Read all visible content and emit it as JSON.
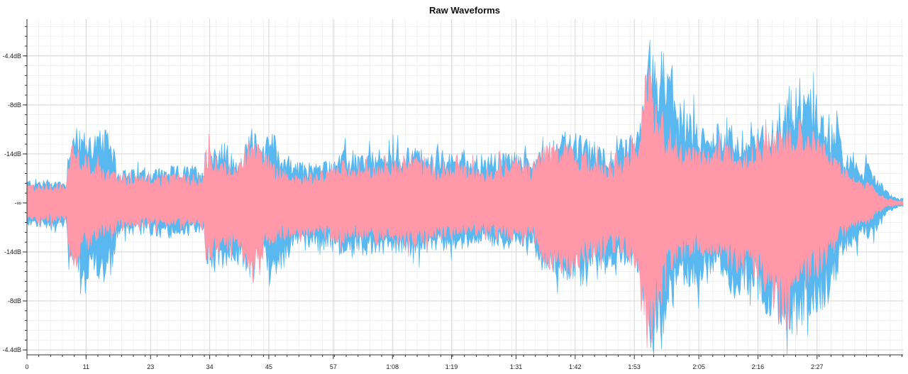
{
  "chart_data": {
    "type": "area",
    "title": "Raw Waveforms",
    "xlabel": "",
    "ylabel": "",
    "x_unit": "seconds",
    "xlim": [
      0,
      163
    ],
    "x_ticks": [
      {
        "value": 0,
        "label": "0"
      },
      {
        "value": 11,
        "label": "11"
      },
      {
        "value": 23,
        "label": "23"
      },
      {
        "value": 34,
        "label": "34"
      },
      {
        "value": 45,
        "label": "45"
      },
      {
        "value": 57,
        "label": "57"
      },
      {
        "value": 68,
        "label": "1:08"
      },
      {
        "value": 79,
        "label": "1:19"
      },
      {
        "value": 91,
        "label": "1:31"
      },
      {
        "value": 102,
        "label": "1:42"
      },
      {
        "value": 113,
        "label": "1:53"
      },
      {
        "value": 125,
        "label": "2:05"
      },
      {
        "value": 136,
        "label": "2:16"
      },
      {
        "value": 147,
        "label": "2:27"
      }
    ],
    "y_ticks": [
      {
        "value": 0.6,
        "label": "-4.4dB"
      },
      {
        "value": 0.4,
        "label": "-8dB"
      },
      {
        "value": 0.2,
        "label": "-14dB"
      },
      {
        "value": 0,
        "label": "-∞"
      },
      {
        "value": -0.2,
        "label": "-14dB"
      },
      {
        "value": -0.4,
        "label": "-8dB"
      },
      {
        "value": -0.6,
        "label": "-4.4dB"
      }
    ],
    "ylim": [
      -0.62,
      0.75
    ],
    "grid": true,
    "series": [
      {
        "color": "#5ab8f0",
        "x": [
          0,
          7.5,
          7.6,
          9,
          10.5,
          12,
          13.5,
          15,
          16.5,
          16.6,
          20,
          25,
          33,
          33.2,
          35,
          37,
          39,
          42,
          44,
          45,
          47,
          50,
          52,
          56,
          59,
          60,
          66,
          72,
          76,
          78,
          80,
          85,
          90,
          94,
          96,
          100,
          103,
          105,
          110,
          114,
          115,
          116,
          117,
          118,
          119,
          120,
          121,
          122,
          123,
          125,
          127,
          130,
          132,
          135,
          138,
          140,
          142,
          145,
          148,
          150,
          151,
          152,
          153,
          154,
          155,
          157,
          158,
          160,
          162,
          163
        ],
        "top": [
          0.1,
          0.1,
          0.28,
          0.3,
          0.3,
          0.3,
          0.3,
          0.3,
          0.25,
          0.14,
          0.14,
          0.15,
          0.16,
          0.24,
          0.25,
          0.25,
          0.17,
          0.3,
          0.25,
          0.35,
          0.23,
          0.17,
          0.17,
          0.18,
          0.22,
          0.2,
          0.22,
          0.24,
          0.2,
          0.2,
          0.22,
          0.2,
          0.22,
          0.2,
          0.25,
          0.3,
          0.28,
          0.26,
          0.22,
          0.32,
          0.5,
          0.68,
          0.6,
          0.66,
          0.58,
          0.5,
          0.48,
          0.35,
          0.38,
          0.34,
          0.3,
          0.36,
          0.3,
          0.3,
          0.34,
          0.38,
          0.48,
          0.55,
          0.4,
          0.35,
          0.34,
          0.22,
          0.2,
          0.18,
          0.15,
          0.17,
          0.12,
          0.05,
          0.02,
          0.02
        ],
        "bot": [
          -0.1,
          -0.11,
          -0.22,
          -0.3,
          -0.32,
          -0.33,
          -0.32,
          -0.33,
          -0.25,
          -0.15,
          -0.13,
          -0.15,
          -0.13,
          -0.25,
          -0.3,
          -0.27,
          -0.26,
          -0.3,
          -0.2,
          -0.35,
          -0.3,
          -0.18,
          -0.2,
          -0.2,
          -0.22,
          -0.23,
          -0.22,
          -0.22,
          -0.2,
          -0.2,
          -0.2,
          -0.17,
          -0.2,
          -0.18,
          -0.27,
          -0.32,
          -0.35,
          -0.28,
          -0.26,
          -0.3,
          -0.5,
          -0.62,
          -0.6,
          -0.62,
          -0.48,
          -0.45,
          -0.4,
          -0.35,
          -0.35,
          -0.35,
          -0.3,
          -0.35,
          -0.4,
          -0.38,
          -0.48,
          -0.5,
          -0.55,
          -0.5,
          -0.45,
          -0.38,
          -0.3,
          -0.2,
          -0.2,
          -0.2,
          -0.15,
          -0.15,
          -0.12,
          -0.05,
          -0.02,
          -0.02
        ]
      },
      {
        "color": "#ff99aa",
        "x": [
          0,
          7.5,
          7.6,
          9,
          10.5,
          12,
          13.5,
          15,
          16.5,
          16.6,
          20,
          25,
          33,
          33.2,
          35,
          37,
          39,
          42,
          44,
          45,
          47,
          50,
          52,
          56,
          59,
          60,
          66,
          72,
          76,
          78,
          80,
          85,
          90,
          94,
          96,
          100,
          103,
          105,
          110,
          114,
          115,
          116,
          117,
          118,
          119,
          120,
          121,
          122,
          123,
          125,
          127,
          130,
          132,
          135,
          138,
          140,
          142,
          145,
          148,
          150,
          151,
          152,
          153,
          154,
          155,
          157,
          158,
          160,
          162,
          163
        ],
        "top": [
          0.08,
          0.08,
          0.22,
          0.28,
          0.2,
          0.2,
          0.15,
          0.14,
          0.15,
          0.12,
          0.12,
          0.12,
          0.12,
          0.25,
          0.2,
          0.18,
          0.14,
          0.3,
          0.22,
          0.2,
          0.15,
          0.12,
          0.12,
          0.14,
          0.18,
          0.15,
          0.16,
          0.22,
          0.15,
          0.15,
          0.17,
          0.15,
          0.19,
          0.17,
          0.24,
          0.26,
          0.2,
          0.2,
          0.17,
          0.32,
          0.55,
          0.58,
          0.45,
          0.45,
          0.3,
          0.32,
          0.28,
          0.24,
          0.24,
          0.24,
          0.22,
          0.28,
          0.24,
          0.24,
          0.3,
          0.3,
          0.36,
          0.34,
          0.28,
          0.2,
          0.18,
          0.14,
          0.14,
          0.12,
          0.1,
          0.08,
          0.05,
          0.02,
          0.01,
          0.01
        ],
        "bot": [
          -0.08,
          -0.08,
          -0.22,
          -0.3,
          -0.2,
          -0.2,
          -0.15,
          -0.13,
          -0.14,
          -0.11,
          -0.1,
          -0.1,
          -0.11,
          -0.25,
          -0.24,
          -0.2,
          -0.18,
          -0.35,
          -0.2,
          -0.2,
          -0.17,
          -0.14,
          -0.14,
          -0.15,
          -0.18,
          -0.16,
          -0.16,
          -0.19,
          -0.15,
          -0.15,
          -0.15,
          -0.13,
          -0.16,
          -0.15,
          -0.25,
          -0.33,
          -0.28,
          -0.24,
          -0.2,
          -0.3,
          -0.5,
          -0.62,
          -0.5,
          -0.35,
          -0.28,
          -0.28,
          -0.26,
          -0.25,
          -0.22,
          -0.22,
          -0.22,
          -0.26,
          -0.3,
          -0.3,
          -0.42,
          -0.5,
          -0.45,
          -0.35,
          -0.3,
          -0.22,
          -0.16,
          -0.14,
          -0.13,
          -0.11,
          -0.1,
          -0.08,
          -0.05,
          -0.02,
          -0.01,
          -0.01
        ]
      }
    ]
  }
}
